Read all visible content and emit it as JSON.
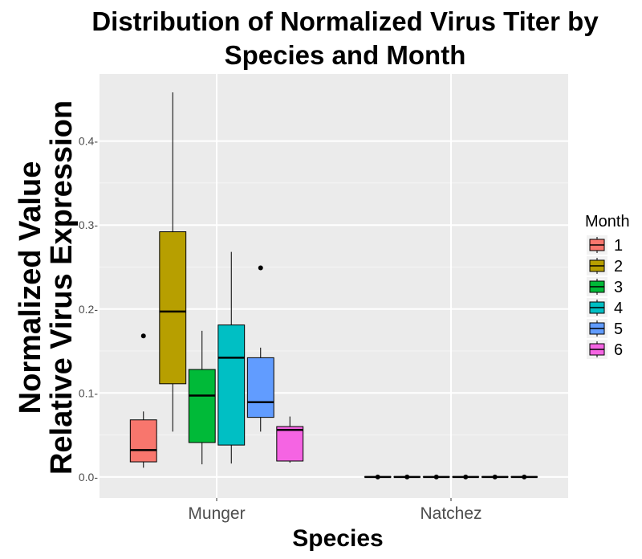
{
  "chart_data": {
    "type": "box",
    "title_line1": "Distribution of Normalized Virus Titer by",
    "title_line2": "Species and Month",
    "ylabel_line1": "Normalized Value",
    "ylabel_line2": "Relative Virus Expression",
    "xlabel": "Species",
    "ylim": [
      -0.025,
      0.48
    ],
    "y_ticks": [
      0.0,
      0.1,
      0.2,
      0.3,
      0.4
    ],
    "y_tick_labels": [
      "0.0-",
      "0.1-",
      "0.2-",
      "0.3-",
      "0.4-"
    ],
    "categories": [
      "Munger",
      "Natchez"
    ],
    "legend_title": "Month",
    "legend_placement": "right",
    "grid": true,
    "series": [
      {
        "name": "1",
        "color": "#F8766D",
        "boxes": [
          {
            "category": "Munger",
            "min": 0.011,
            "q1": 0.018,
            "median": 0.032,
            "q3": 0.068,
            "max": 0.078,
            "outliers": [
              0.168
            ]
          },
          {
            "category": "Natchez",
            "min": 0.0,
            "q1": 0.0,
            "median": 0.0,
            "q3": 0.0,
            "max": 0.0,
            "outliers": [
              0.0
            ]
          }
        ]
      },
      {
        "name": "2",
        "color": "#B79F00",
        "boxes": [
          {
            "category": "Munger",
            "min": 0.054,
            "q1": 0.111,
            "median": 0.197,
            "q3": 0.292,
            "max": 0.458,
            "outliers": []
          },
          {
            "category": "Natchez",
            "min": 0.0,
            "q1": 0.0,
            "median": 0.0,
            "q3": 0.0,
            "max": 0.0,
            "outliers": [
              0.0
            ]
          }
        ]
      },
      {
        "name": "3",
        "color": "#00BA38",
        "boxes": [
          {
            "category": "Munger",
            "min": 0.015,
            "q1": 0.041,
            "median": 0.097,
            "q3": 0.128,
            "max": 0.174,
            "outliers": []
          },
          {
            "category": "Natchez",
            "min": 0.0,
            "q1": 0.0,
            "median": 0.0,
            "q3": 0.0,
            "max": 0.0,
            "outliers": [
              0.0
            ]
          }
        ]
      },
      {
        "name": "4",
        "color": "#00BFC4",
        "boxes": [
          {
            "category": "Munger",
            "min": 0.016,
            "q1": 0.038,
            "median": 0.142,
            "q3": 0.181,
            "max": 0.268,
            "outliers": []
          },
          {
            "category": "Natchez",
            "min": 0.0,
            "q1": 0.0,
            "median": 0.0,
            "q3": 0.0,
            "max": 0.0,
            "outliers": [
              0.0
            ]
          }
        ]
      },
      {
        "name": "5",
        "color": "#619CFF",
        "boxes": [
          {
            "category": "Munger",
            "min": 0.054,
            "q1": 0.071,
            "median": 0.089,
            "q3": 0.142,
            "max": 0.154,
            "outliers": [
              0.249
            ]
          },
          {
            "category": "Natchez",
            "min": 0.0,
            "q1": 0.0,
            "median": 0.0,
            "q3": 0.0,
            "max": 0.0,
            "outliers": [
              0.0
            ]
          }
        ]
      },
      {
        "name": "6",
        "color": "#F564E3",
        "boxes": [
          {
            "category": "Munger",
            "min": 0.017,
            "q1": 0.019,
            "median": 0.056,
            "q3": 0.06,
            "max": 0.072,
            "outliers": []
          },
          {
            "category": "Natchez",
            "min": 0.0,
            "q1": 0.0,
            "median": 0.0,
            "q3": 0.0,
            "max": 0.0,
            "outliers": [
              0.0
            ]
          }
        ]
      }
    ]
  },
  "colors": {
    "panel_background": "#EBEBEB",
    "grid_major": "#FFFFFF",
    "grid_minor": "#F5F5F5",
    "tick_text": "#4D4D4D"
  }
}
